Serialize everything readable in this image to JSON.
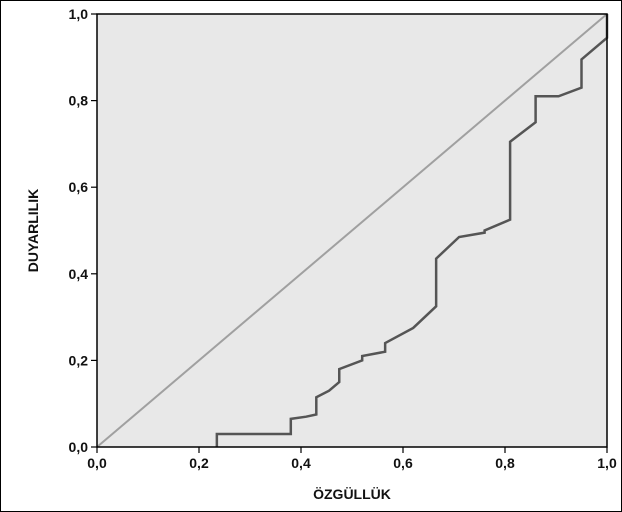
{
  "chart_data": {
    "type": "line",
    "title": "",
    "xlabel": "ÖZGÜLLÜK",
    "ylabel": "DUYARLILIK",
    "xlim": [
      0,
      1
    ],
    "ylim": [
      0,
      1
    ],
    "x_tick_labels": [
      "0,0",
      "0,2",
      "0,4",
      "0,6",
      "0,8",
      "1,0"
    ],
    "x_tick_values": [
      0,
      0.2,
      0.4,
      0.6,
      0.8,
      1.0
    ],
    "y_tick_labels": [
      "0,0",
      "0,2",
      "0,4",
      "0,6",
      "0,8",
      "1,0"
    ],
    "y_tick_values": [
      0,
      0.2,
      0.4,
      0.6,
      0.8,
      1.0
    ],
    "grid": false,
    "plot_background": "#e8e8e8",
    "series": [
      {
        "style": "step",
        "color": "#555555",
        "points": [
          [
            0.235,
            0.0
          ],
          [
            0.235,
            0.03
          ],
          [
            0.38,
            0.03
          ],
          [
            0.38,
            0.065
          ],
          [
            0.41,
            0.07
          ],
          [
            0.43,
            0.075
          ],
          [
            0.43,
            0.115
          ],
          [
            0.455,
            0.13
          ],
          [
            0.475,
            0.15
          ],
          [
            0.475,
            0.18
          ],
          [
            0.52,
            0.2
          ],
          [
            0.52,
            0.21
          ],
          [
            0.565,
            0.22
          ],
          [
            0.565,
            0.24
          ],
          [
            0.62,
            0.275
          ],
          [
            0.665,
            0.325
          ],
          [
            0.665,
            0.435
          ],
          [
            0.71,
            0.485
          ],
          [
            0.76,
            0.495
          ],
          [
            0.76,
            0.5
          ],
          [
            0.81,
            0.525
          ],
          [
            0.81,
            0.705
          ],
          [
            0.86,
            0.75
          ],
          [
            0.86,
            0.81
          ],
          [
            0.905,
            0.81
          ],
          [
            0.95,
            0.83
          ],
          [
            0.95,
            0.895
          ],
          [
            1.0,
            0.945
          ],
          [
            1.0,
            1.0
          ]
        ]
      },
      {
        "style": "reference",
        "color": "#a0a0a0",
        "points": [
          [
            0,
            0
          ],
          [
            1,
            1
          ]
        ]
      }
    ]
  }
}
